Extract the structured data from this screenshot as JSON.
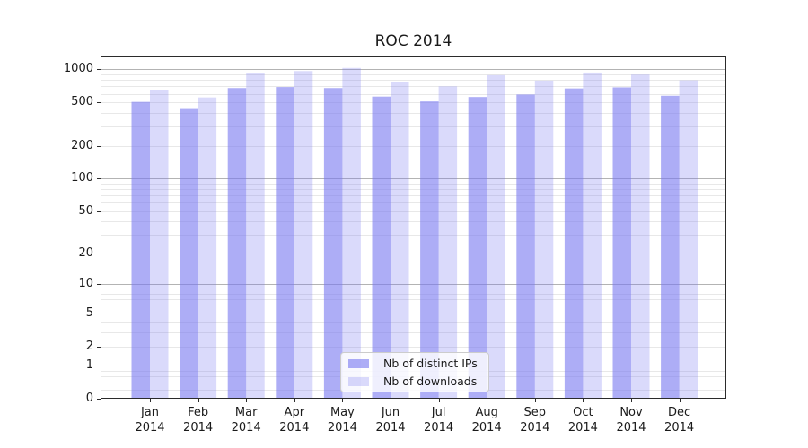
{
  "title": "ROC 2014",
  "chart_data": {
    "type": "bar",
    "title": "ROC 2014",
    "categories": [
      "Jan 2014",
      "Feb 2014",
      "Mar 2014",
      "Apr 2014",
      "May 2014",
      "Jun 2014",
      "Jul 2014",
      "Aug 2014",
      "Sep 2014",
      "Oct 2014",
      "Nov 2014",
      "Dec 2014"
    ],
    "x_months": [
      "Jan",
      "Feb",
      "Mar",
      "Apr",
      "May",
      "Jun",
      "Jul",
      "Aug",
      "Sep",
      "Oct",
      "Nov",
      "Dec"
    ],
    "x_year": "2014",
    "series": [
      {
        "name": "Nb of distinct IPs",
        "color": "rgba(118,118,240,0.6)",
        "values": [
          505,
          435,
          675,
          690,
          675,
          565,
          510,
          560,
          590,
          670,
          685,
          575
        ]
      },
      {
        "name": "Nb of downloads",
        "color": "rgba(118,118,240,0.27)",
        "values": [
          650,
          555,
          915,
          965,
          1030,
          765,
          700,
          885,
          790,
          935,
          895,
          795
        ]
      }
    ],
    "xlabel": "",
    "ylabel": "",
    "y_axis": {
      "scale": "log1p",
      "tick_values": [
        0,
        1,
        2,
        5,
        10,
        20,
        50,
        100,
        200,
        500,
        1000
      ],
      "major_gridlines": [
        1,
        10,
        100,
        1000
      ],
      "minor_gridlines": [
        0.2,
        0.4,
        0.6,
        0.8,
        2,
        3,
        4,
        5,
        6,
        7,
        8,
        9,
        20,
        30,
        40,
        50,
        60,
        70,
        80,
        90,
        200,
        300,
        400,
        500,
        600,
        700,
        800,
        900
      ],
      "ylim": [
        0,
        1310
      ]
    },
    "grid": true,
    "legend_position": "inside-bottom-center"
  },
  "colors": {
    "bar_distinct_ips": "rgba(118,118,240,0.6)",
    "bar_downloads": "rgba(118,118,240,0.27)",
    "major_grid": "#b3b3b3",
    "minor_grid": "#e8e8e8",
    "axis_frame": "#2b2b2b",
    "text": "#1a1a1a",
    "legend_border": "#cccccc",
    "legend_background": "rgba(255,255,255,0.8)"
  }
}
